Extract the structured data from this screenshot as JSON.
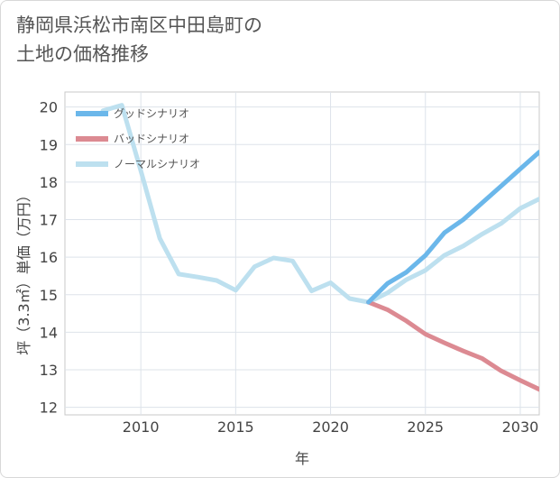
{
  "title": "静岡県浜松市南区中田島町の\n土地の価格推移",
  "chart_data": {
    "type": "line",
    "xlabel": "年",
    "ylabel": "坪（3.3㎡）単価（万円）",
    "xlim": [
      2006,
      2031
    ],
    "ylim": [
      11.8,
      20.4
    ],
    "x_ticks": [
      2010,
      2015,
      2020,
      2025,
      2030
    ],
    "y_ticks": [
      12,
      13,
      14,
      15,
      16,
      17,
      18,
      19,
      20
    ],
    "grid": true,
    "legend_position": "top-left",
    "series": [
      {
        "name": "グッドシナリオ",
        "color": "#6bb7ea",
        "x": [
          2022,
          2023,
          2024,
          2025,
          2026,
          2027,
          2028,
          2029,
          2030,
          2031
        ],
        "y": [
          14.8,
          15.3,
          15.6,
          16.05,
          16.65,
          17.0,
          17.45,
          17.9,
          18.35,
          18.8
        ]
      },
      {
        "name": "バッドシナリオ",
        "color": "#dc8a92",
        "x": [
          2022,
          2023,
          2024,
          2025,
          2026,
          2027,
          2028,
          2029,
          2030,
          2031
        ],
        "y": [
          14.8,
          14.6,
          14.3,
          13.95,
          13.72,
          13.5,
          13.3,
          12.97,
          12.72,
          12.48
        ]
      },
      {
        "name": "ノーマルシナリオ",
        "color": "#bde0ef",
        "x": [
          2008,
          2009,
          2010,
          2011,
          2012,
          2013,
          2014,
          2015,
          2016,
          2017,
          2018,
          2019,
          2020,
          2021,
          2022,
          2023,
          2024,
          2025,
          2026,
          2027,
          2028,
          2029,
          2030,
          2031
        ],
        "y": [
          19.9,
          20.05,
          18.3,
          16.5,
          15.55,
          15.47,
          15.38,
          15.12,
          15.75,
          15.98,
          15.9,
          15.1,
          15.32,
          14.9,
          14.8,
          15.05,
          15.4,
          15.65,
          16.05,
          16.3,
          16.62,
          16.9,
          17.3,
          17.55
        ]
      }
    ]
  }
}
